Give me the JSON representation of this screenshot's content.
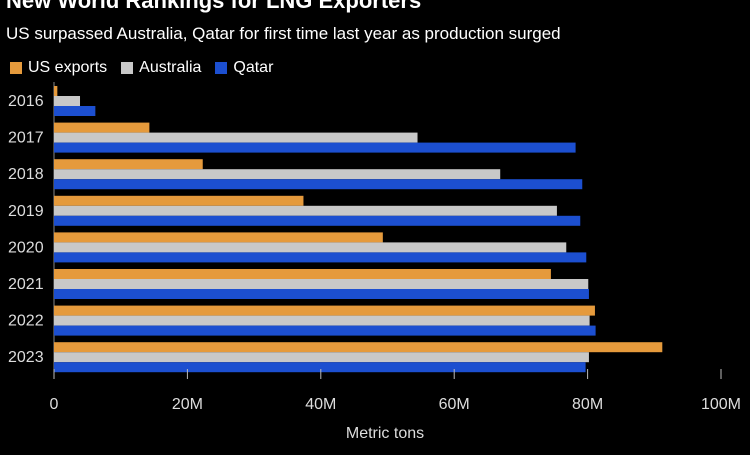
{
  "chart_data": {
    "type": "bar",
    "orientation": "horizontal",
    "title": "New World Rankings for LNG Exporters",
    "subtitle": "US surpassed Australia, Qatar for first time last year as production surged",
    "xlabel": "Metric tons",
    "ylabel": "",
    "xlim": [
      0,
      100
    ],
    "x_ticks": [
      "0",
      "20M",
      "40M",
      "60M",
      "80M",
      "100M"
    ],
    "categories": [
      "2016",
      "2017",
      "2018",
      "2019",
      "2020",
      "2021",
      "2022",
      "2023"
    ],
    "series": [
      {
        "name": "US exports",
        "color": "#e59a3c",
        "values": [
          0.5,
          14.3,
          22.3,
          37.4,
          49.3,
          74.5,
          81.1,
          91.2
        ]
      },
      {
        "name": "Australia",
        "color": "#c8c8c8",
        "values": [
          3.9,
          54.5,
          66.9,
          75.4,
          76.8,
          80.1,
          80.3,
          80.2
        ]
      },
      {
        "name": "Qatar",
        "color": "#1c4fd0",
        "values": [
          6.2,
          78.2,
          79.2,
          78.9,
          79.8,
          80.2,
          81.2,
          79.7
        ]
      }
    ],
    "grid": false,
    "legend_position": "top-left"
  }
}
